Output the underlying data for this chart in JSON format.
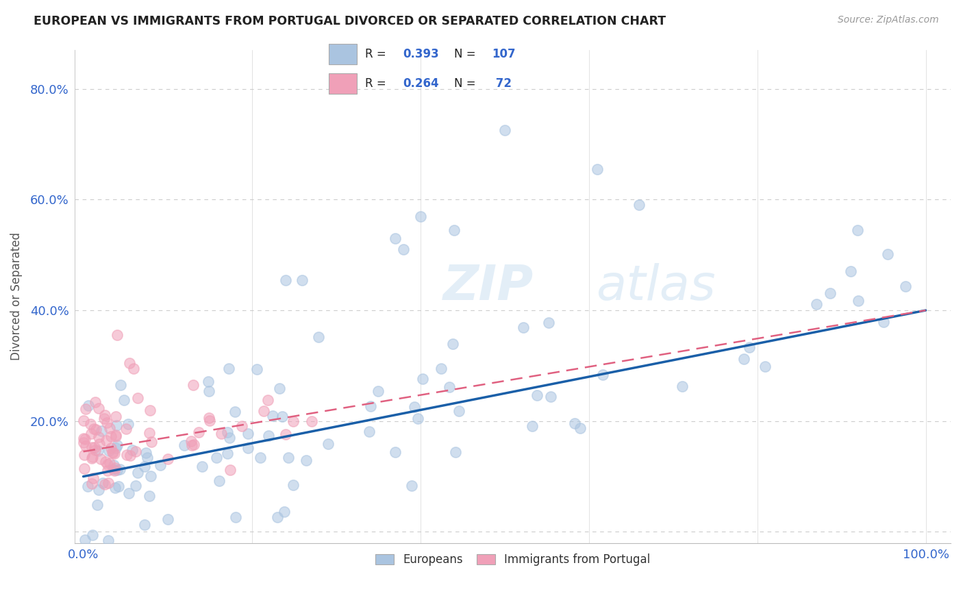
{
  "title": "EUROPEAN VS IMMIGRANTS FROM PORTUGAL DIVORCED OR SEPARATED CORRELATION CHART",
  "source": "Source: ZipAtlas.com",
  "ylabel": "Divorced or Separated",
  "blue_R": 0.393,
  "blue_N": 107,
  "pink_R": 0.264,
  "pink_N": 72,
  "blue_color": "#aac4e0",
  "pink_color": "#f0a0b8",
  "blue_line_color": "#1a5fa8",
  "pink_line_color": "#e06080",
  "watermark_zip": "ZIP",
  "watermark_atlas": "atlas",
  "blue_intercept": 0.1,
  "blue_slope": 0.3,
  "pink_intercept": 0.145,
  "pink_slope": 0.255,
  "xlim_min": -0.01,
  "xlim_max": 1.03,
  "ylim_min": -0.02,
  "ylim_max": 0.87
}
